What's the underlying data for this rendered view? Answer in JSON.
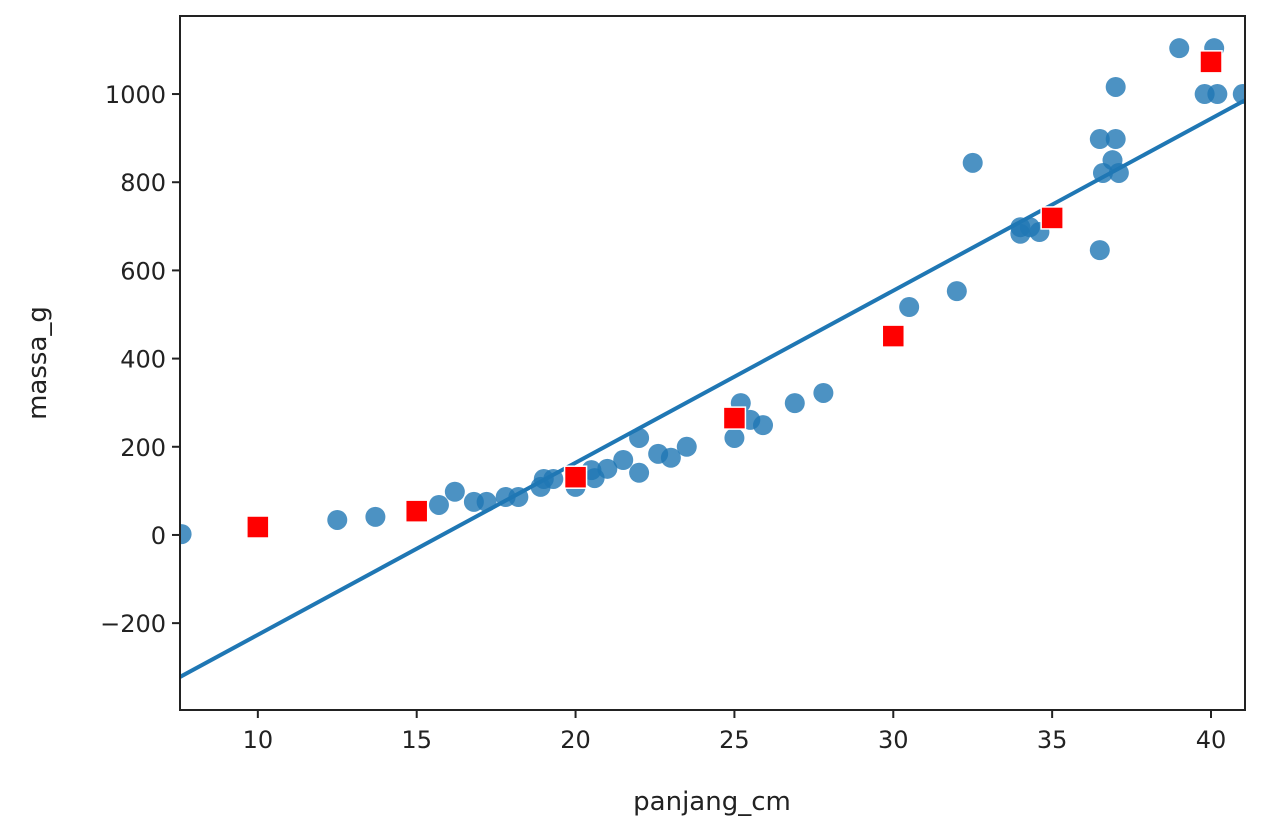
{
  "chart_data": {
    "type": "scatter",
    "title": "",
    "xlabel": "panjang_cm",
    "ylabel": "massa_g",
    "xlim": [
      7.55,
      41.07
    ],
    "ylim": [
      -397,
      1177
    ],
    "xticks": [
      10,
      15,
      20,
      25,
      30,
      35,
      40
    ],
    "yticks": [
      -200,
      0,
      200,
      400,
      600,
      800,
      1000
    ],
    "ytick_labels": [
      "−200",
      "0",
      "200",
      "400",
      "600",
      "800",
      "1000"
    ],
    "grid": false,
    "colors": {
      "points": "#1f77b4",
      "line": "#1f77b4",
      "predictions": "#ff0000"
    },
    "series": [
      {
        "type": "scatter",
        "marker": "circle",
        "x": [
          7.6,
          12.5,
          13.7,
          15.7,
          16.2,
          16.8,
          17.2,
          17.8,
          18.2,
          18.9,
          19.0,
          19.3,
          20.0,
          20.5,
          20.6,
          21.0,
          21.5,
          22.0,
          22.0,
          22.6,
          23.0,
          23.5,
          25.0,
          25.2,
          25.5,
          25.9,
          26.9,
          27.8,
          30.5,
          32.0,
          32.5,
          34.0,
          34.0,
          34.3,
          34.6,
          36.5,
          36.5,
          37.0,
          37.0,
          36.6,
          36.9,
          37.1,
          39.0,
          40.1,
          39.8,
          40.2,
          41.0
        ],
        "y": [
          2,
          34,
          41,
          68,
          98,
          75,
          75,
          86,
          86,
          109,
          127,
          127,
          109,
          147,
          129,
          150,
          170,
          141,
          220,
          184,
          175,
          200,
          220,
          299,
          261,
          249,
          299,
          322,
          517,
          553,
          844,
          683,
          698,
          698,
          687,
          646,
          898,
          898,
          1016,
          821,
          850,
          821,
          1104,
          1104,
          1000,
          1000,
          1000
        ]
      },
      {
        "type": "line",
        "x": [
          7.55,
          41.07
        ],
        "y": [
          -322,
          986
        ]
      },
      {
        "type": "scatter",
        "marker": "square",
        "x": [
          10,
          15,
          20,
          25,
          30,
          35,
          40
        ],
        "y": [
          18,
          54,
          131,
          265,
          451,
          719,
          1073
        ]
      }
    ]
  }
}
